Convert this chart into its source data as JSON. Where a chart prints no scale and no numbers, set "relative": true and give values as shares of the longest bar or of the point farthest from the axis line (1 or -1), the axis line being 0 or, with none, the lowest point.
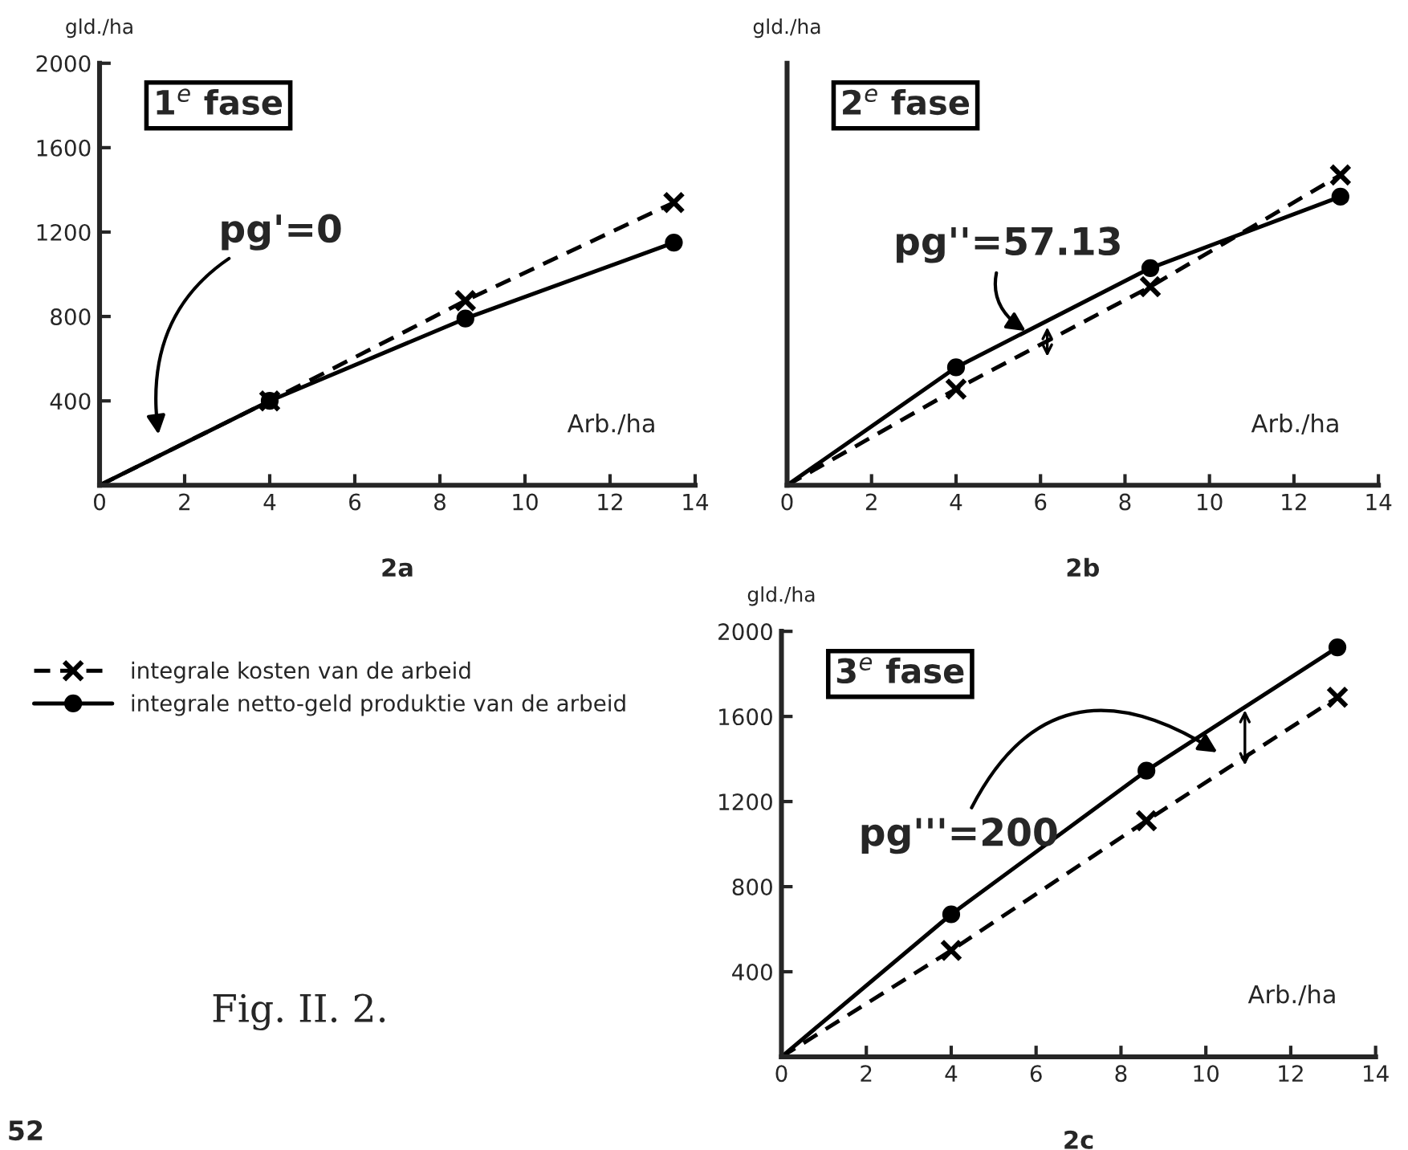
{
  "chart_data": [
    {
      "type": "line",
      "title": "1$^{e}$ fase",
      "xlabel": "Arb./ha",
      "ylabel": "gld./ha",
      "xlim": [
        0,
        14
      ],
      "xticks": [
        0,
        2,
        4,
        6,
        8,
        10,
        12,
        14
      ],
      "ylim": [
        0,
        2000
      ],
      "yticks": [
        400,
        800,
        1200,
        1600,
        2000
      ],
      "grid": false,
      "series": [
        {
          "color": "#000000",
          "marker": "cross",
          "line_style": "dashed",
          "x": [
            0,
            4,
            8.6,
            13.5
          ],
          "values": [
            0,
            400,
            875,
            1340
          ]
        },
        {
          "color": "#000000",
          "marker": "circle",
          "line_style": "solid",
          "x": [
            0,
            4,
            8.6,
            13.5
          ],
          "values": [
            0,
            400,
            790,
            1150
          ]
        }
      ],
      "annotations": [
        "pg'=0",
        "2a"
      ]
    },
    {
      "type": "line",
      "relative": true,
      "xlabel": "Arb./ha",
      "ylabel": "gld./ha",
      "title": "2$^{e}$ fase",
      "xlim": [
        0,
        14
      ],
      "xticks": [
        0,
        2,
        4,
        6,
        8,
        10,
        12,
        14
      ],
      "grid": false,
      "series": [
        {
          "color": "#000000",
          "marker": "cross",
          "line_style": "dashed",
          "x": [
            0,
            4,
            8.6,
            13.1
          ],
          "values": [
            0,
            0.31,
            0.64,
            1
          ]
        },
        {
          "color": "#000000",
          "marker": "circle",
          "line_style": "solid",
          "x": [
            0,
            4,
            8.6,
            13.1
          ],
          "values": [
            0,
            0.38,
            0.7,
            0.93
          ]
        }
      ],
      "annotations": [
        "pg''=57.13",
        "2b"
      ]
    },
    {
      "type": "line",
      "title": "3$^{e}$ fase",
      "xlabel": "Arb./ha",
      "ylabel": "gld./ha",
      "xlim": [
        0,
        14
      ],
      "xticks": [
        0,
        2,
        4,
        6,
        8,
        10,
        12,
        14
      ],
      "ylim": [
        0,
        2000
      ],
      "yticks": [
        400,
        800,
        1200,
        1600,
        2000
      ],
      "grid": false,
      "legend": "left",
      "series": [
        {
          "name": "integrale kosten van de arbeid",
          "color": "#000000",
          "marker": "cross",
          "line_style": "dashed",
          "x": [
            0,
            4,
            8.6,
            13.1
          ],
          "values": [
            0,
            500,
            1110,
            1690
          ]
        },
        {
          "name": "integrale netto-geld produktie van de arbeid",
          "color": "#000000",
          "marker": "circle",
          "line_style": "solid",
          "x": [
            0,
            4,
            8.6,
            13.1
          ],
          "values": [
            0,
            670,
            1345,
            1925
          ]
        }
      ],
      "annotations": [
        "pg'''=200",
        "2c",
        "Fig. II. 2.",
        "52"
      ]
    }
  ]
}
